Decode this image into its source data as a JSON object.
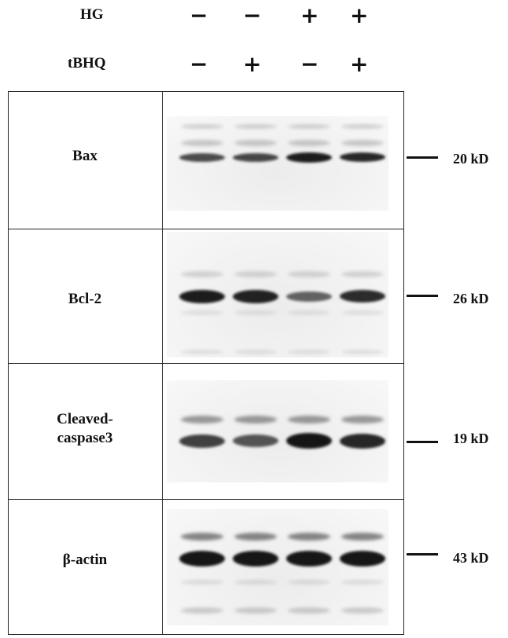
{
  "conditions": {
    "rows": [
      {
        "label": "HG",
        "signs": [
          "−",
          "−",
          "+",
          "+"
        ]
      },
      {
        "label": "tBHQ",
        "signs": [
          "−",
          "+",
          "−",
          "+"
        ]
      }
    ]
  },
  "panels": [
    {
      "label_lines": [
        "Bax"
      ],
      "marker": "20 kD",
      "lanes": [
        0.62,
        0.65,
        0.95,
        0.88
      ]
    },
    {
      "label_lines": [
        "Bcl-2"
      ],
      "marker": "26 kD",
      "lanes": [
        0.95,
        0.92,
        0.45,
        0.85
      ]
    },
    {
      "label_lines": [
        "Cleaved-",
        "caspase3"
      ],
      "marker": "19 kD",
      "lanes": [
        0.7,
        0.55,
        1.0,
        0.88
      ]
    },
    {
      "label_lines": [
        "β-actin"
      ],
      "marker": "43 kD",
      "lanes": [
        1.0,
        1.0,
        1.0,
        1.0
      ]
    }
  ]
}
